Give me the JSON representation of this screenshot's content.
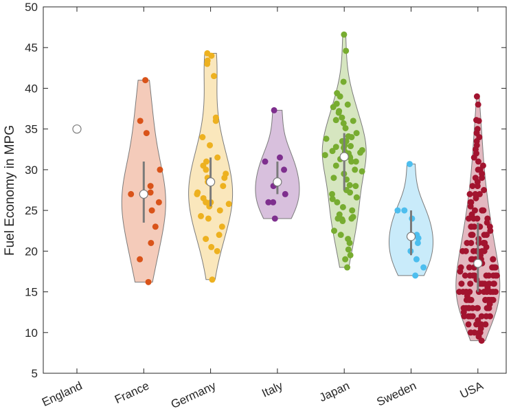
{
  "chart_data": {
    "type": "violin",
    "title": "",
    "xlabel": "",
    "ylabel": "Fuel Economy in MPG",
    "ylim": [
      5,
      50
    ],
    "yticks": [
      5,
      10,
      15,
      20,
      25,
      30,
      35,
      40,
      45,
      50
    ],
    "grid": false,
    "categories": [
      "England",
      "France",
      "Germany",
      "Italy",
      "Japan",
      "Sweden",
      "USA"
    ],
    "series": [
      {
        "name": "England",
        "color": "#8c8c8c",
        "min": 35,
        "max": 35,
        "median": 35,
        "q1": 35,
        "q3": 35,
        "points": [
          35
        ]
      },
      {
        "name": "France",
        "color": "#d95319",
        "min": 16.2,
        "max": 41,
        "median": 27,
        "q1": 23.5,
        "q3": 31,
        "points": [
          41,
          36,
          34.5,
          30,
          28,
          27.2,
          27,
          26,
          25,
          23,
          21,
          19,
          16.2
        ]
      },
      {
        "name": "Germany",
        "color": "#edb120",
        "min": 16.5,
        "max": 44.3,
        "median": 28.5,
        "q1": 25.5,
        "q3": 31.5,
        "points": [
          44.3,
          44,
          43.4,
          43,
          41.5,
          36.4,
          36,
          34,
          33,
          31.5,
          31,
          30.5,
          30,
          29.5,
          29,
          29,
          28.5,
          28,
          27.2,
          27,
          26.5,
          26,
          26,
          25.8,
          25.5,
          25,
          24.3,
          24,
          23,
          22,
          21.5,
          20.5,
          20,
          16.5
        ]
      },
      {
        "name": "Italy",
        "color": "#7e2f8e",
        "min": 24,
        "max": 37.3,
        "median": 28.5,
        "q1": 27,
        "q3": 31,
        "points": [
          37.3,
          31.5,
          31,
          30,
          28,
          27,
          26,
          26,
          24
        ]
      },
      {
        "name": "Japan",
        "color": "#77ac30",
        "min": 18,
        "max": 46.6,
        "median": 31.6,
        "q1": 27.5,
        "q3": 34.5,
        "points": [
          46.6,
          44.6,
          40.8,
          39.4,
          39,
          38.1,
          38,
          37.7,
          37.2,
          37,
          36.4,
          36.1,
          36,
          35.7,
          35.1,
          34.5,
          34.1,
          34,
          33.8,
          33.5,
          33.5,
          33,
          32.9,
          32.8,
          32.7,
          32.4,
          32.3,
          32.2,
          32.1,
          32,
          31.8,
          31.6,
          31.5,
          31.3,
          31,
          31,
          30.5,
          30,
          29.8,
          29.5,
          29,
          28.8,
          28.1,
          28,
          27.5,
          27.2,
          27,
          26.6,
          26.4,
          26,
          25.4,
          25,
          24.5,
          24.2,
          24,
          24,
          23.9,
          23.7,
          22.5,
          22,
          21.5,
          21,
          20.2,
          19.5,
          19,
          18
        ]
      },
      {
        "name": "Sweden",
        "color": "#4dbeee",
        "min": 17,
        "max": 30.7,
        "median": 21.8,
        "q1": 19.5,
        "q3": 25,
        "points": [
          30.7,
          25,
          25,
          24,
          22,
          21.6,
          21,
          20,
          19,
          18,
          17
        ]
      },
      {
        "name": "USA",
        "color": "#a2142f",
        "min": 9,
        "max": 39,
        "median": 18.5,
        "q1": 15,
        "q3": 23.5,
        "points": [
          39,
          38,
          36.1,
          36,
          35,
          34.5,
          34,
          33.5,
          33,
          32.5,
          32,
          31.5,
          31,
          30.5,
          30,
          30,
          29.5,
          29,
          29,
          28.5,
          28,
          28,
          27.5,
          27,
          27,
          27,
          26.5,
          26,
          26,
          26,
          25.5,
          25,
          25,
          25,
          25,
          24.5,
          24,
          24,
          24,
          24,
          23.5,
          23,
          23,
          23,
          23,
          23,
          22.5,
          22,
          22,
          22,
          22,
          22,
          21.5,
          21,
          21,
          21,
          21,
          21,
          21,
          20.5,
          20,
          20,
          20,
          20,
          20,
          20,
          20,
          19.5,
          19,
          19,
          19,
          19,
          19,
          19,
          19,
          18.5,
          18,
          18,
          18,
          18,
          18,
          18,
          18,
          18,
          17.5,
          17,
          17,
          17,
          17,
          17,
          17,
          17,
          17,
          17,
          16.5,
          16,
          16,
          16,
          16,
          16,
          16,
          16,
          16,
          16,
          15.5,
          15,
          15,
          15,
          15,
          15,
          15,
          15,
          15,
          15,
          15,
          14.5,
          14,
          14,
          14,
          14,
          14,
          14,
          14,
          14,
          14,
          13.5,
          13,
          13,
          13,
          13,
          13,
          13,
          13,
          13,
          13,
          12.5,
          12,
          12,
          12,
          12,
          12,
          12,
          12,
          11.5,
          11,
          11,
          11,
          11,
          11,
          10.5,
          10,
          10,
          10,
          10,
          9.5,
          9
        ]
      }
    ]
  }
}
